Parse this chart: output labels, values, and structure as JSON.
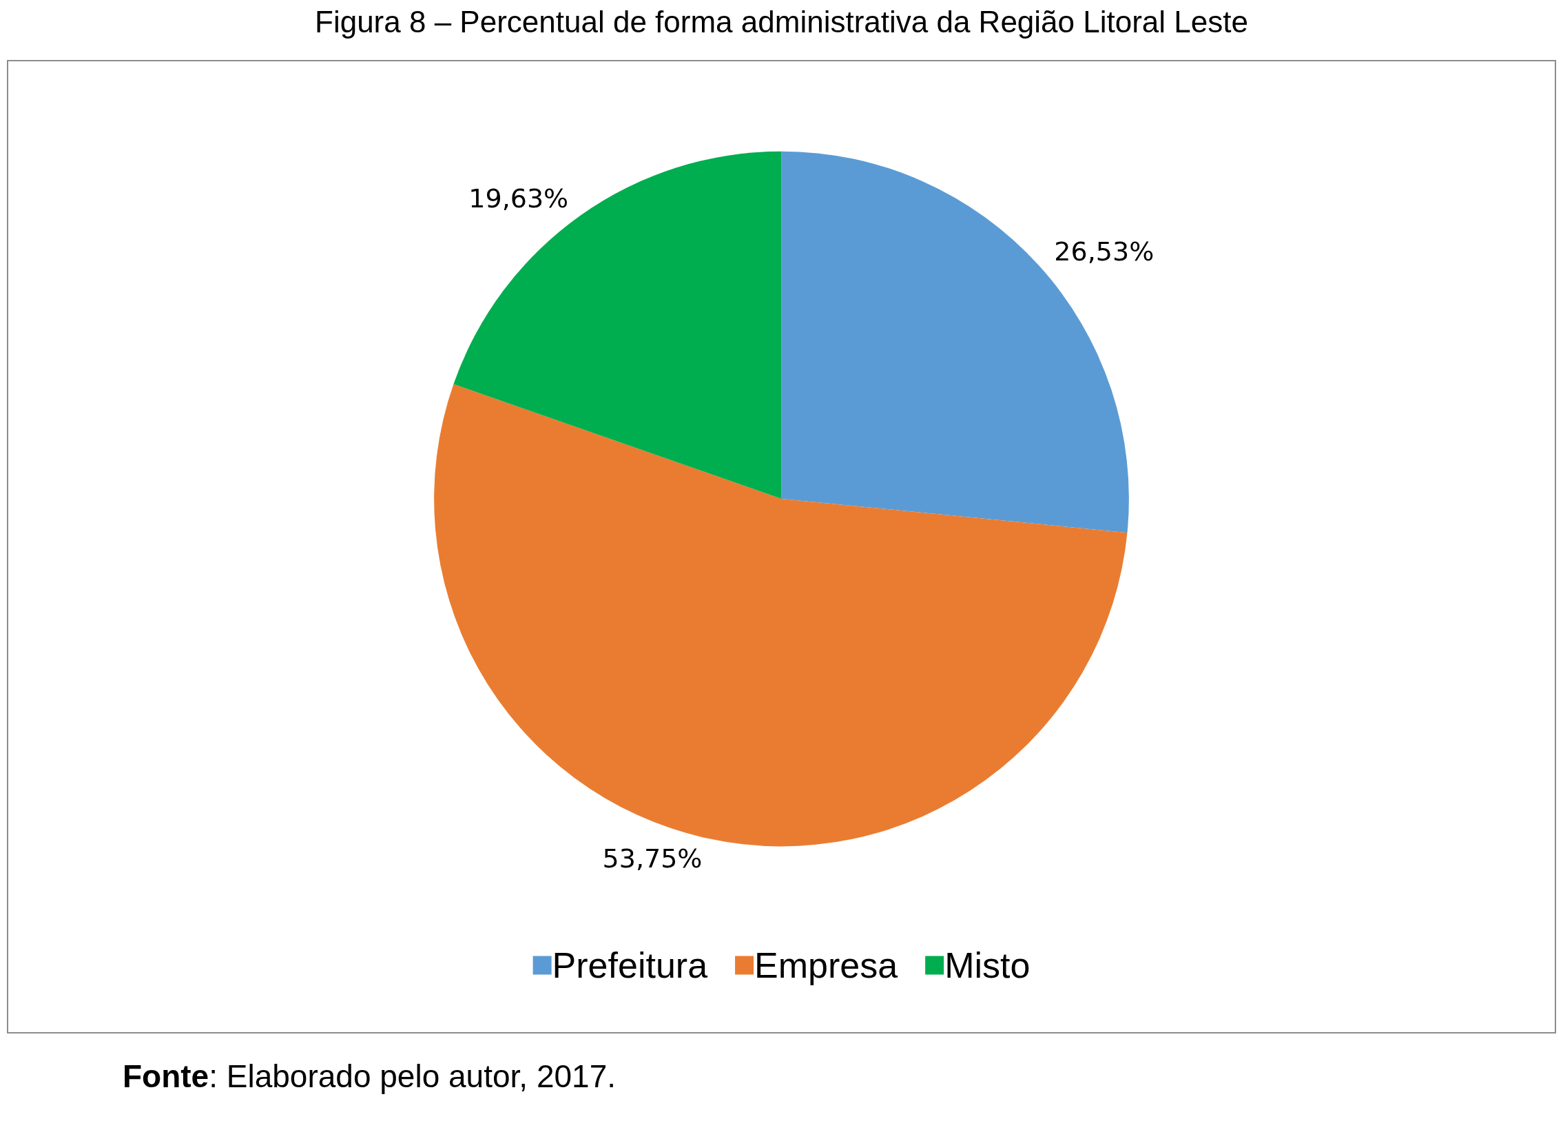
{
  "chart_data": {
    "type": "pie",
    "title": "Figura 8 – Percentual de forma administrativa da Região Litoral Leste",
    "categories": [
      "Prefeitura",
      "Empresa",
      "Misto"
    ],
    "values": [
      26.53,
      53.75,
      19.63
    ],
    "colors": [
      "#5b9bd5",
      "#ea7c31",
      "#00ad4f"
    ],
    "value_labels": [
      "26,53%",
      "53,75%",
      "19,63%"
    ],
    "legend": "bottom",
    "annotations": [
      "Fonte: Elaborado pelo autor, 2017."
    ]
  }
}
